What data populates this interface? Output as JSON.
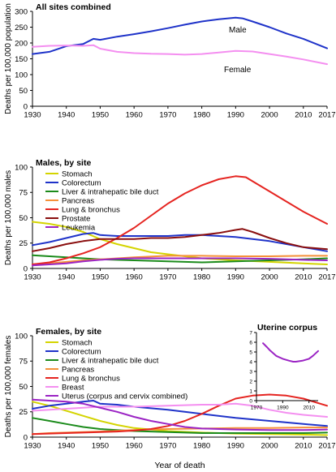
{
  "chart_data": [
    {
      "type": "line",
      "title": "All sites combined",
      "ylabel": "Deaths per 100,000 population",
      "ylim": [
        0,
        300
      ],
      "yticks": [
        0,
        50,
        100,
        150,
        200,
        250,
        300
      ],
      "xlim": [
        1930,
        2017
      ],
      "xticks": [
        1930,
        1940,
        1950,
        1960,
        1970,
        1980,
        1990,
        2000,
        2010,
        2017
      ],
      "legend": "none",
      "series": [
        {
          "name": "Male",
          "color": "#1f33c9",
          "x": [
            1930,
            1935,
            1940,
            1945,
            1948,
            1950,
            1955,
            1960,
            1965,
            1970,
            1975,
            1980,
            1985,
            1990,
            1992,
            1995,
            2000,
            2005,
            2010,
            2017
          ],
          "y": [
            165,
            172,
            190,
            197,
            213,
            210,
            220,
            228,
            237,
            247,
            258,
            268,
            275,
            280,
            278,
            268,
            250,
            230,
            213,
            183
          ]
        },
        {
          "name": "Female",
          "color": "#f48ff0",
          "x": [
            1930,
            1935,
            1940,
            1945,
            1948,
            1950,
            1955,
            1960,
            1965,
            1970,
            1975,
            1980,
            1985,
            1990,
            1995,
            2000,
            2005,
            2010,
            2017
          ],
          "y": [
            188,
            191,
            192,
            191,
            193,
            182,
            172,
            168,
            166,
            165,
            163,
            165,
            170,
            175,
            173,
            165,
            157,
            148,
            133
          ]
        }
      ]
    },
    {
      "type": "line",
      "title": "Males, by site",
      "ylabel": "Deaths per 100,000 males",
      "ylim": [
        0,
        100
      ],
      "yticks": [
        0,
        25,
        50,
        75,
        100
      ],
      "xlim": [
        1930,
        2017
      ],
      "xticks": [
        1930,
        1940,
        1950,
        1960,
        1970,
        1980,
        1990,
        2000,
        2010,
        2017
      ],
      "legend": "top-left",
      "series": [
        {
          "name": "Stomach",
          "color": "#d4d400",
          "x": [
            1930,
            1935,
            1940,
            1945,
            1950,
            1955,
            1960,
            1965,
            1970,
            1975,
            1980,
            1990,
            2000,
            2010,
            2017
          ],
          "y": [
            46,
            44,
            41,
            36,
            29,
            24,
            20,
            16,
            14,
            12,
            10,
            8,
            6.5,
            5,
            4
          ]
        },
        {
          "name": "Colorectum",
          "color": "#1f33c9",
          "x": [
            1930,
            1935,
            1940,
            1945,
            1948,
            1950,
            1955,
            1960,
            1970,
            1975,
            1980,
            1985,
            1990,
            2000,
            2010,
            2017
          ],
          "y": [
            23,
            26,
            30,
            34,
            35,
            33,
            32,
            32,
            32,
            33,
            33,
            32,
            31,
            27,
            21,
            17
          ]
        },
        {
          "name": "Liver & intrahepatic bile duct",
          "color": "#1b8b1b",
          "x": [
            1930,
            1940,
            1950,
            1960,
            1970,
            1980,
            1990,
            2000,
            2010,
            2017
          ],
          "y": [
            13,
            11,
            9,
            8,
            7,
            6,
            7,
            8,
            9,
            10
          ]
        },
        {
          "name": "Pancreas",
          "color": "#f5913a",
          "x": [
            1930,
            1935,
            1940,
            1945,
            1950,
            1960,
            1970,
            1980,
            1990,
            2000,
            2010,
            2017
          ],
          "y": [
            4,
            5,
            6.5,
            8,
            9,
            11,
            12.5,
            12.5,
            12,
            12,
            12.5,
            12.5
          ]
        },
        {
          "name": "Lung & bronchus",
          "color": "#e52420",
          "x": [
            1930,
            1935,
            1940,
            1945,
            1950,
            1955,
            1960,
            1965,
            1970,
            1975,
            1980,
            1985,
            1990,
            1993,
            1995,
            2000,
            2005,
            2010,
            2017
          ],
          "y": [
            4,
            6,
            10,
            15,
            21,
            30,
            40,
            52,
            64,
            74,
            82,
            88,
            91,
            90,
            86,
            76,
            66,
            56,
            44
          ]
        },
        {
          "name": "Prostate",
          "color": "#8a0e0e",
          "x": [
            1930,
            1935,
            1940,
            1945,
            1950,
            1955,
            1960,
            1965,
            1970,
            1975,
            1980,
            1985,
            1990,
            1992,
            1995,
            2000,
            2005,
            2010,
            2017
          ],
          "y": [
            17,
            20,
            24,
            27,
            29,
            29,
            29,
            30,
            30,
            31,
            33,
            35,
            38,
            39,
            36,
            30,
            25,
            21,
            19
          ]
        },
        {
          "name": "Leukemia",
          "color": "#9b24c4",
          "x": [
            1930,
            1935,
            1940,
            1945,
            1950,
            1955,
            1960,
            1970,
            1980,
            1990,
            2000,
            2010,
            2017
          ],
          "y": [
            3,
            4,
            5,
            7,
            8.5,
            9.5,
            10,
            10,
            10,
            10,
            9.5,
            8.5,
            8
          ]
        }
      ]
    },
    {
      "type": "line",
      "title": "Females, by site",
      "ylabel": "Deaths per 100,000 females",
      "ylim": [
        0,
        100
      ],
      "yticks": [
        0,
        25,
        50,
        75,
        100
      ],
      "xlim": [
        1930,
        2017
      ],
      "xticks": [
        1930,
        1940,
        1950,
        1960,
        1970,
        1980,
        1990,
        2000,
        2010,
        2017
      ],
      "xlabel": "Year of death",
      "legend": "top-left",
      "series": [
        {
          "name": "Stomach",
          "color": "#d4d400",
          "x": [
            1930,
            1935,
            1940,
            1945,
            1950,
            1955,
            1960,
            1965,
            1970,
            1980,
            1990,
            2000,
            2010,
            2017
          ],
          "y": [
            35,
            31,
            26,
            21,
            16,
            12,
            9,
            7.5,
            6,
            4.5,
            3.5,
            3,
            2.5,
            2
          ]
        },
        {
          "name": "Colorectum",
          "color": "#1f33c9",
          "x": [
            1930,
            1935,
            1940,
            1945,
            1948,
            1950,
            1955,
            1960,
            1970,
            1980,
            1990,
            2000,
            2010,
            2017
          ],
          "y": [
            28,
            31,
            33,
            35,
            36,
            33,
            32,
            30,
            27,
            23,
            19,
            16,
            13,
            11
          ]
        },
        {
          "name": "Liver & intrahepatic bile duct",
          "color": "#1b8b1b",
          "x": [
            1930,
            1935,
            1940,
            1945,
            1950,
            1960,
            1970,
            1980,
            1990,
            2000,
            2010,
            2017
          ],
          "y": [
            19,
            16,
            13,
            10,
            8,
            6,
            5,
            4,
            4,
            4,
            4,
            4.5
          ]
        },
        {
          "name": "Pancreas",
          "color": "#f5913a",
          "x": [
            1930,
            1935,
            1940,
            1945,
            1950,
            1960,
            1970,
            1980,
            1990,
            2000,
            2010,
            2017
          ],
          "y": [
            3,
            4,
            4.5,
            5,
            5.5,
            7,
            8,
            8.5,
            9,
            9,
            9.5,
            9.5
          ]
        },
        {
          "name": "Lung & bronchus",
          "color": "#e52420",
          "x": [
            1930,
            1935,
            1940,
            1945,
            1950,
            1955,
            1960,
            1965,
            1970,
            1975,
            1980,
            1985,
            1990,
            1995,
            2000,
            2005,
            2010,
            2017
          ],
          "y": [
            3,
            3.5,
            4,
            4.5,
            5,
            5.5,
            6.5,
            8,
            11,
            16,
            23,
            31,
            38,
            41,
            42,
            41,
            38,
            31
          ]
        },
        {
          "name": "Breast",
          "color": "#f48ff0",
          "x": [
            1930,
            1935,
            1940,
            1945,
            1950,
            1960,
            1970,
            1980,
            1985,
            1990,
            1995,
            2000,
            2005,
            2010,
            2017
          ],
          "y": [
            26,
            27,
            28,
            29,
            30,
            30,
            31,
            32,
            32,
            33,
            31,
            27,
            24,
            22,
            20
          ]
        },
        {
          "name": "Uterus (corpus and cervix combined)",
          "color": "#9b24c4",
          "x": [
            1930,
            1935,
            1940,
            1945,
            1950,
            1955,
            1960,
            1965,
            1970,
            1975,
            1980,
            1990,
            2000,
            2010,
            2017
          ],
          "y": [
            37,
            36,
            35,
            33,
            29,
            25,
            20,
            16,
            13,
            10,
            8.5,
            7.5,
            7,
            7,
            7.5
          ]
        }
      ]
    },
    {
      "type": "line",
      "title": "Uterine corpus",
      "ylim": [
        0,
        7
      ],
      "yticks": [
        0,
        1,
        2,
        3,
        4,
        5,
        6,
        7
      ],
      "xlim": [
        1970,
        2017
      ],
      "xticks": [
        1970,
        1990,
        2010
      ],
      "legend": "none",
      "series": [
        {
          "name": "",
          "color": "#9b24c4",
          "x": [
            1975,
            1978,
            1980,
            1985,
            1990,
            1995,
            1998,
            2000,
            2005,
            2010,
            2013,
            2017
          ],
          "y": [
            5.9,
            5.5,
            5.2,
            4.6,
            4.3,
            4.1,
            4.0,
            4.0,
            4.1,
            4.3,
            4.6,
            5.1
          ]
        }
      ]
    }
  ],
  "panels_text": {
    "male_label": "Male",
    "female_label": "Female",
    "xlabel": "Year of death"
  }
}
